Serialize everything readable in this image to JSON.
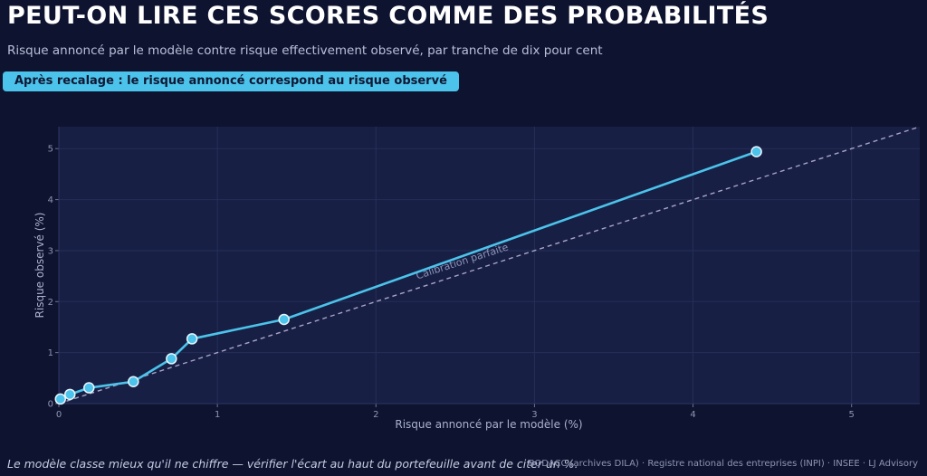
{
  "header": {
    "title": "PEUT-ON LIRE CES SCORES COMME DES PROBABILITÉS",
    "subtitle": "Risque annoncé par le modèle contre risque effectivement observé, par tranche de dix pour cent",
    "badge": "Après recalage : le risque annoncé correspond au risque observé"
  },
  "footer": {
    "note": "Le modèle classe mieux qu'il ne chiffre — vérifier l'écart au haut du portefeuille avant de citer un %.",
    "source": "BODACC (archives DILA) · Registre national des entreprises (INPI) · INSEE  ·  LJ Advisory"
  },
  "colors": {
    "background": "#0e1330",
    "plot_background": "#171f45",
    "series": "#4cc3ea",
    "reference_line": "#a9a4c6",
    "grid": "#262f58"
  },
  "chart_data": {
    "type": "line",
    "xlabel": "Risque annoncé par le modèle (%)",
    "ylabel": "Risque observé (%)",
    "xlim": [
      0,
      5.43
    ],
    "ylim": [
      0,
      5.43
    ],
    "xticks": [
      0,
      1,
      2,
      3,
      4,
      5
    ],
    "yticks": [
      0,
      1,
      2,
      3,
      4,
      5
    ],
    "grid": true,
    "series": [
      {
        "x": [
          0.01,
          0.07,
          0.19,
          0.47,
          0.71,
          0.84,
          1.42,
          4.4
        ],
        "y": [
          0.09,
          0.18,
          0.31,
          0.43,
          0.88,
          1.27,
          1.65,
          4.94
        ]
      }
    ],
    "reference": {
      "label": "Calibration parfaite",
      "style": "dashed",
      "from": [
        0,
        0
      ],
      "to": [
        5.43,
        5.43
      ]
    }
  }
}
